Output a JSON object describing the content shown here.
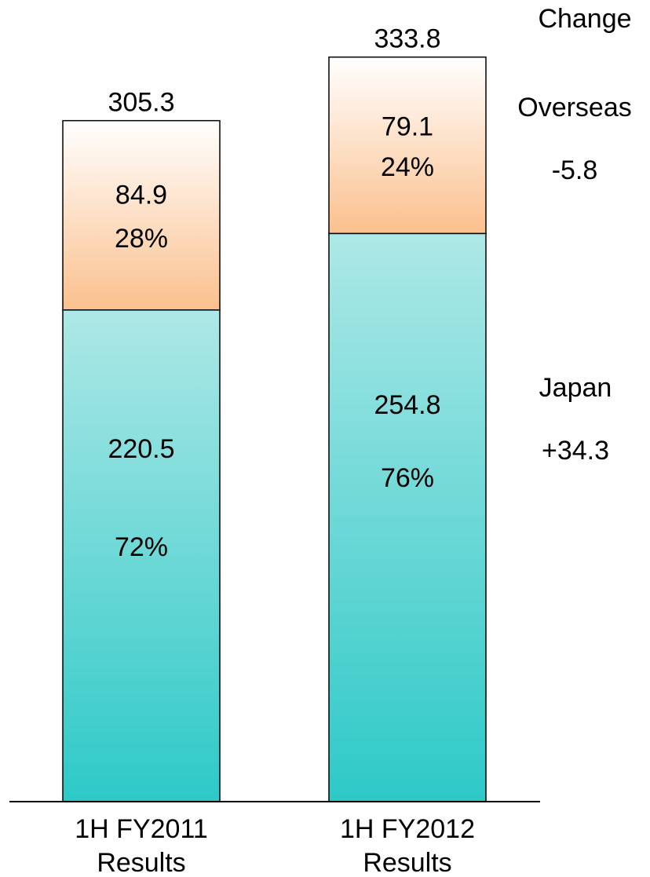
{
  "chart_data": {
    "type": "bar",
    "stacked": true,
    "categories": [
      "1H FY2011 Results",
      "1H FY2012 Results"
    ],
    "category_lines": [
      [
        "1H FY2011",
        "Results"
      ],
      [
        "1H FY2012",
        "Results"
      ]
    ],
    "series": [
      {
        "name": "Japan",
        "values": [
          220.5,
          254.8
        ],
        "value_labels": [
          "220.5",
          "254.8"
        ],
        "share_labels": [
          "72%",
          "76%"
        ],
        "change_label": "+34.3",
        "color_top": "#ade8e6",
        "color_bottom": "#2dc9c7"
      },
      {
        "name": "Overseas",
        "values": [
          84.9,
          79.1
        ],
        "value_labels": [
          "84.9",
          "79.1"
        ],
        "share_labels": [
          "28%",
          "24%"
        ],
        "change_label": "-5.8",
        "color_top": "#ffffff",
        "color_bottom": "#fbc08d"
      }
    ],
    "totals": [
      305.3,
      333.8
    ],
    "total_labels": [
      "305.3",
      "333.8"
    ],
    "change_header": "Change",
    "ylim": [
      0,
      333.8
    ],
    "grid": false,
    "colors": {
      "overseas_value_text": "#3b3bc4",
      "overseas_change_text": "#0000ee",
      "text": "#000000",
      "outline": "#000000"
    }
  }
}
